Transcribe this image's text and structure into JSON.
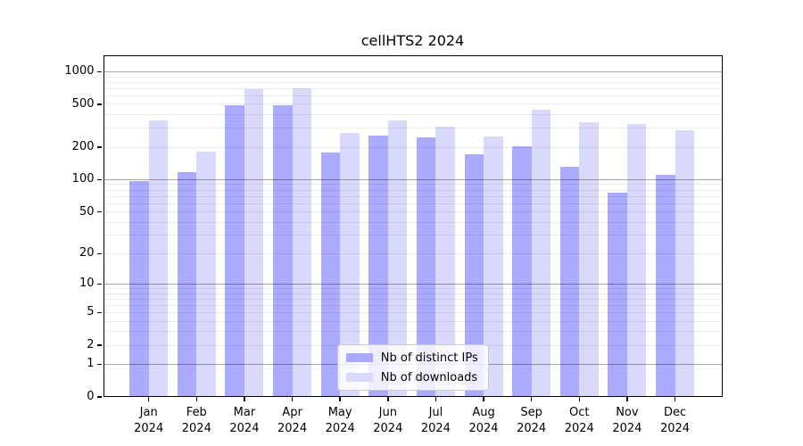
{
  "chart_data": {
    "type": "bar",
    "title": "cellHTS2 2024",
    "categories": [
      {
        "label": "Jan",
        "sublabel": "2024"
      },
      {
        "label": "Feb",
        "sublabel": "2024"
      },
      {
        "label": "Mar",
        "sublabel": "2024"
      },
      {
        "label": "Apr",
        "sublabel": "2024"
      },
      {
        "label": "May",
        "sublabel": "2024"
      },
      {
        "label": "Jun",
        "sublabel": "2024"
      },
      {
        "label": "Jul",
        "sublabel": "2024"
      },
      {
        "label": "Aug",
        "sublabel": "2024"
      },
      {
        "label": "Sep",
        "sublabel": "2024"
      },
      {
        "label": "Oct",
        "sublabel": "2024"
      },
      {
        "label": "Nov",
        "sublabel": "2024"
      },
      {
        "label": "Dec",
        "sublabel": "2024"
      }
    ],
    "series": [
      {
        "name": "Nb of distinct IPs",
        "color": "#aaaaff",
        "values": [
          97,
          117,
          490,
          490,
          178,
          255,
          248,
          172,
          204,
          132,
          75,
          110
        ]
      },
      {
        "name": "Nb of downloads",
        "color": "#d9d9fb",
        "values": [
          356,
          181,
          685,
          706,
          273,
          354,
          308,
          252,
          449,
          342,
          328,
          288
        ]
      }
    ],
    "y_ticks": [
      0,
      1,
      2,
      5,
      10,
      20,
      50,
      100,
      200,
      500,
      1000
    ],
    "y_scale": "log1p",
    "ylim": [
      0,
      1420
    ],
    "xlabel": "",
    "ylabel": "",
    "grid": "horizontal, minor + major",
    "legend_position": "lower center",
    "colors": {
      "grid_major": "rgba(0,0,0,0.35)",
      "grid_minor": "rgba(0,0,0,0.08)",
      "axis": "#000000",
      "background": "#ffffff"
    }
  }
}
